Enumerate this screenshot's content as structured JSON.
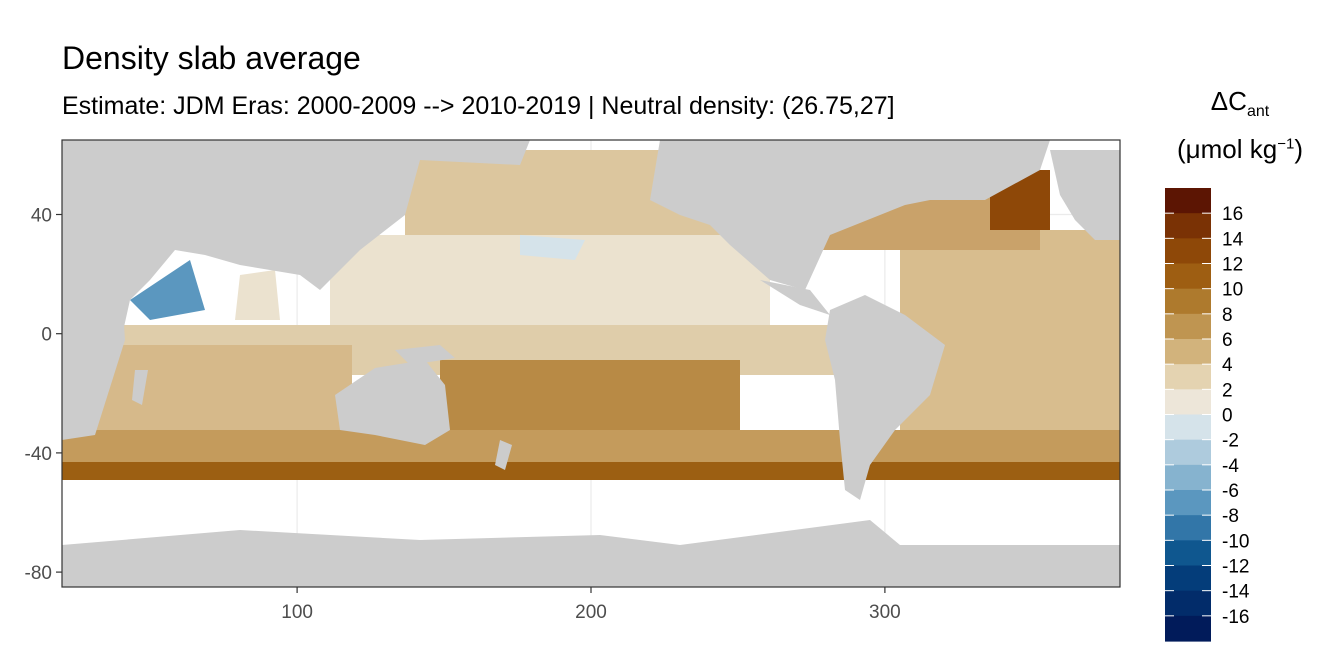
{
  "title": "Density slab average",
  "subtitle": "Estimate: JDM Eras: 2000-2009 --> 2010-2019 | Neutral density: (26.75,27]",
  "legend": {
    "symbol": "ΔC",
    "subscript": "ant",
    "unit_prefix": "(μmol kg",
    "unit_exponent": "−1",
    "unit_suffix": ")",
    "levels": [
      "16",
      "14",
      "12",
      "10",
      "8",
      "6",
      "4",
      "2",
      "0",
      "-2",
      "-4",
      "-6",
      "-8",
      "-10",
      "-12",
      "-14",
      "-16"
    ],
    "colors": [
      "#5c1503",
      "#7a3205",
      "#8e4808",
      "#9e5e12",
      "#ae7a2d",
      "#bf9551",
      "#d2b37c",
      "#e4d3b1",
      "#ede6d9",
      "#d5e3ea",
      "#aecbdd",
      "#86b3cf",
      "#5b97bf",
      "#3276a8",
      "#0f578f",
      "#043d7a",
      "#022c6a",
      "#011b5a"
    ]
  },
  "chart_data": {
    "type": "heatmap",
    "title": "Density slab average",
    "subtitle": "Estimate: JDM Eras: 2000-2009 --> 2010-2019 | Neutral density: (26.75,27]",
    "xlabel": "",
    "ylabel": "",
    "xlim": [
      20,
      380
    ],
    "ylim": [
      -85,
      65
    ],
    "x_ticks": [
      "100",
      "200",
      "300"
    ],
    "y_ticks": [
      "40",
      "0",
      "-40",
      "-80"
    ],
    "x_tick_values": [
      100,
      200,
      300
    ],
    "y_tick_values": [
      40,
      0,
      -40,
      -80
    ],
    "grid": true,
    "legend_position": "right",
    "land_color": "#cccccc",
    "nodata_color": "#ffffff"
  }
}
